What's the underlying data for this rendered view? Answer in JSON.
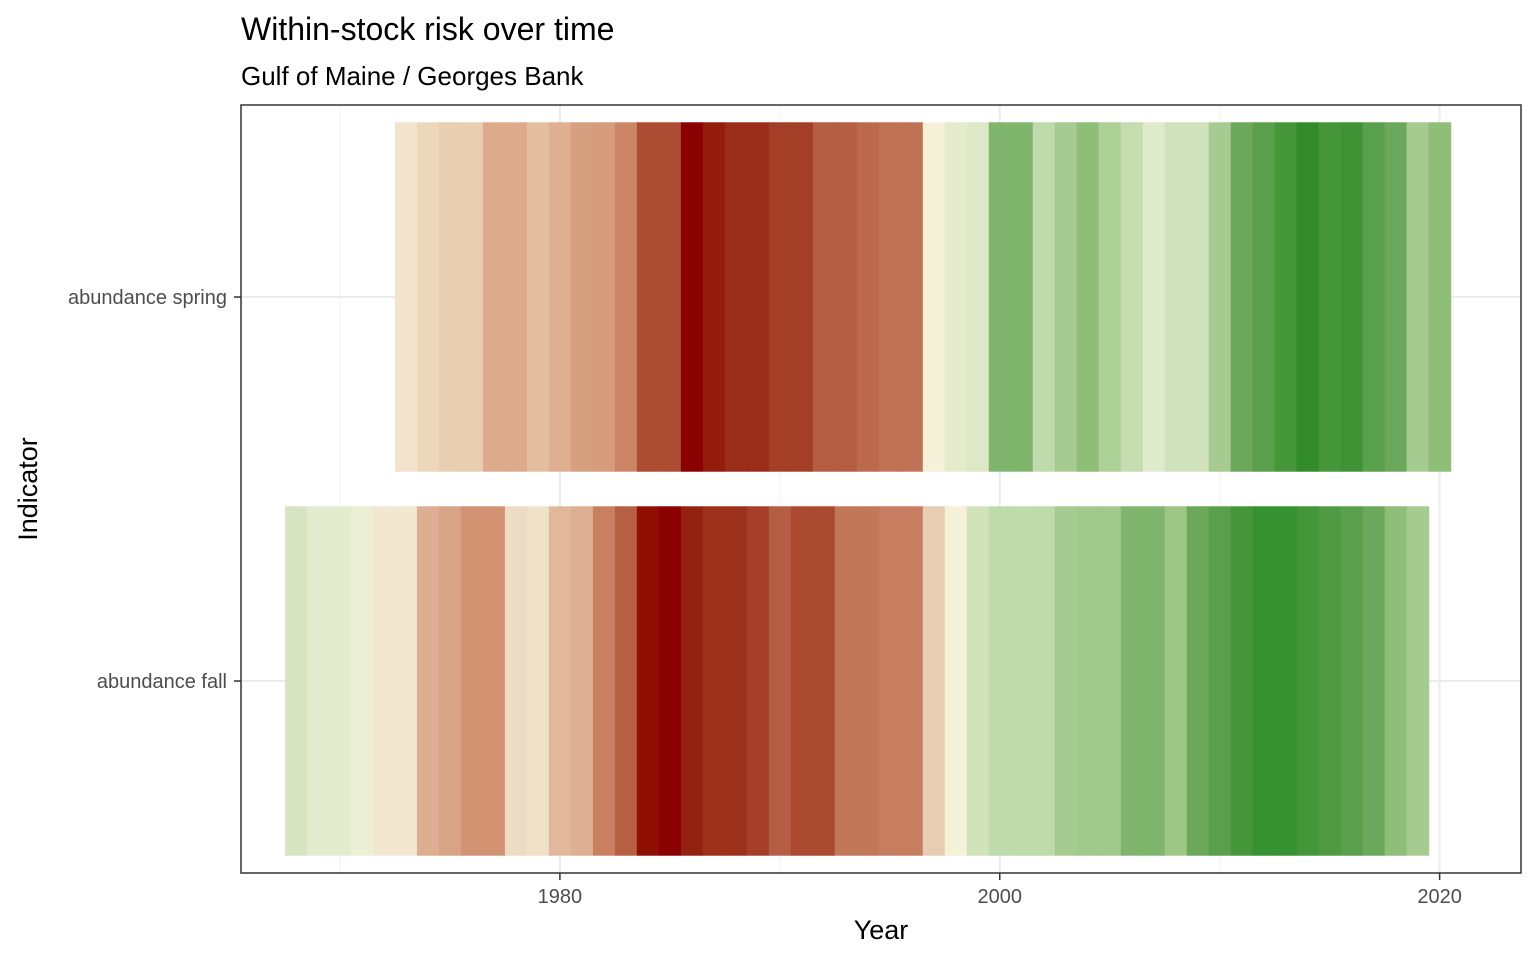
{
  "chart_data": {
    "type": "heatmap",
    "title": "Within-stock risk over time",
    "subtitle": "Gulf of Maine / Georges Bank",
    "xlabel": "Year",
    "ylabel": "Indicator",
    "xlim": [
      1965.5,
      2023.7
    ],
    "x_ticks": [
      1980,
      2000,
      2020
    ],
    "x_tick_labels": [
      "1980",
      "2000",
      "2020"
    ],
    "categories": [
      "abundance fall",
      "abundance spring"
    ],
    "grid": true,
    "legend": "none",
    "color_scale": {
      "low_risk": "#228b22",
      "mid": "#f5f5dc",
      "high_risk": "#8b0000"
    },
    "series": [
      {
        "name": "abundance spring",
        "years": [
          1973,
          1974,
          1975,
          1976,
          1977,
          1978,
          1979,
          1980,
          1981,
          1982,
          1983,
          1984,
          1985,
          1986,
          1987,
          1988,
          1989,
          1990,
          1991,
          1992,
          1993,
          1994,
          1995,
          1996,
          1997,
          1998,
          1999,
          2000,
          2001,
          2002,
          2003,
          2004,
          2005,
          2006,
          2007,
          2008,
          2009,
          2010,
          2011,
          2012,
          2013,
          2014,
          2015,
          2016,
          2017,
          2018,
          2019,
          2020
        ],
        "colors": [
          "#f2e4cc",
          "#ecd7bb",
          "#e9cfb2",
          "#e9cdb1",
          "#deaa8c",
          "#deaa8c",
          "#e4bea1",
          "#deaf92",
          "#d59f80",
          "#d59c7d",
          "#cc8667",
          "#ac4d33",
          "#ac4d33",
          "#8b0000",
          "#931c0c",
          "#9a2d19",
          "#9a2d19",
          "#a33e27",
          "#a33e27",
          "#b55e45",
          "#b55e45",
          "#bb6a50",
          "#c07256",
          "#c07256",
          "#f4f1d8",
          "#e5eccc",
          "#dde8c7",
          "#80b56e",
          "#80b56e",
          "#bfdaab",
          "#a6cb90",
          "#8ebe78",
          "#acd096",
          "#c4dcb0",
          "#e0ebcc",
          "#d0e2bb",
          "#d0e2bb",
          "#a6cb90",
          "#6ba85c",
          "#5aa04c",
          "#459639",
          "#328c2a",
          "#459639",
          "#3f9335",
          "#5aa04c",
          "#6ba85c",
          "#a6cb90",
          "#8ebe78"
        ]
      },
      {
        "name": "abundance fall",
        "years": [
          1968,
          1969,
          1970,
          1971,
          1972,
          1973,
          1974,
          1975,
          1976,
          1977,
          1978,
          1979,
          1980,
          1981,
          1982,
          1983,
          1984,
          1985,
          1986,
          1987,
          1988,
          1989,
          1990,
          1991,
          1992,
          1993,
          1994,
          1995,
          1996,
          1997,
          1998,
          1999,
          2000,
          2001,
          2002,
          2003,
          2004,
          2005,
          2006,
          2007,
          2008,
          2009,
          2010,
          2011,
          2012,
          2013,
          2014,
          2015,
          2016,
          2017,
          2018,
          2019
        ],
        "colors": [
          "#d7e4c1",
          "#e4ecd0",
          "#e4ecd0",
          "#eaefd6",
          "#f2e8d2",
          "#f2e8d2",
          "#ddae92",
          "#d7a487",
          "#d29373",
          "#d29373",
          "#eddcc4",
          "#f0e2c9",
          "#e1b89b",
          "#deb093",
          "#c98060",
          "#b75f43",
          "#900f05",
          "#8b0000",
          "#942211",
          "#9d311c",
          "#9d311c",
          "#a53f29",
          "#b55e45",
          "#aa4b31",
          "#aa4b31",
          "#c1785a",
          "#c1785a",
          "#c77d5f",
          "#c77d5f",
          "#e7cdb1",
          "#f4f1d8",
          "#d2e2bb",
          "#bfdaab",
          "#bfdaab",
          "#bfdaab",
          "#a6cb90",
          "#a1c98c",
          "#a1c98c",
          "#80b56e",
          "#80b56e",
          "#9cc787",
          "#6ba85c",
          "#5aa04c",
          "#459639",
          "#369130",
          "#369130",
          "#459639",
          "#4f9a42",
          "#5aa04c",
          "#6ba85c",
          "#8ebe78",
          "#a6cb90"
        ]
      }
    ]
  }
}
